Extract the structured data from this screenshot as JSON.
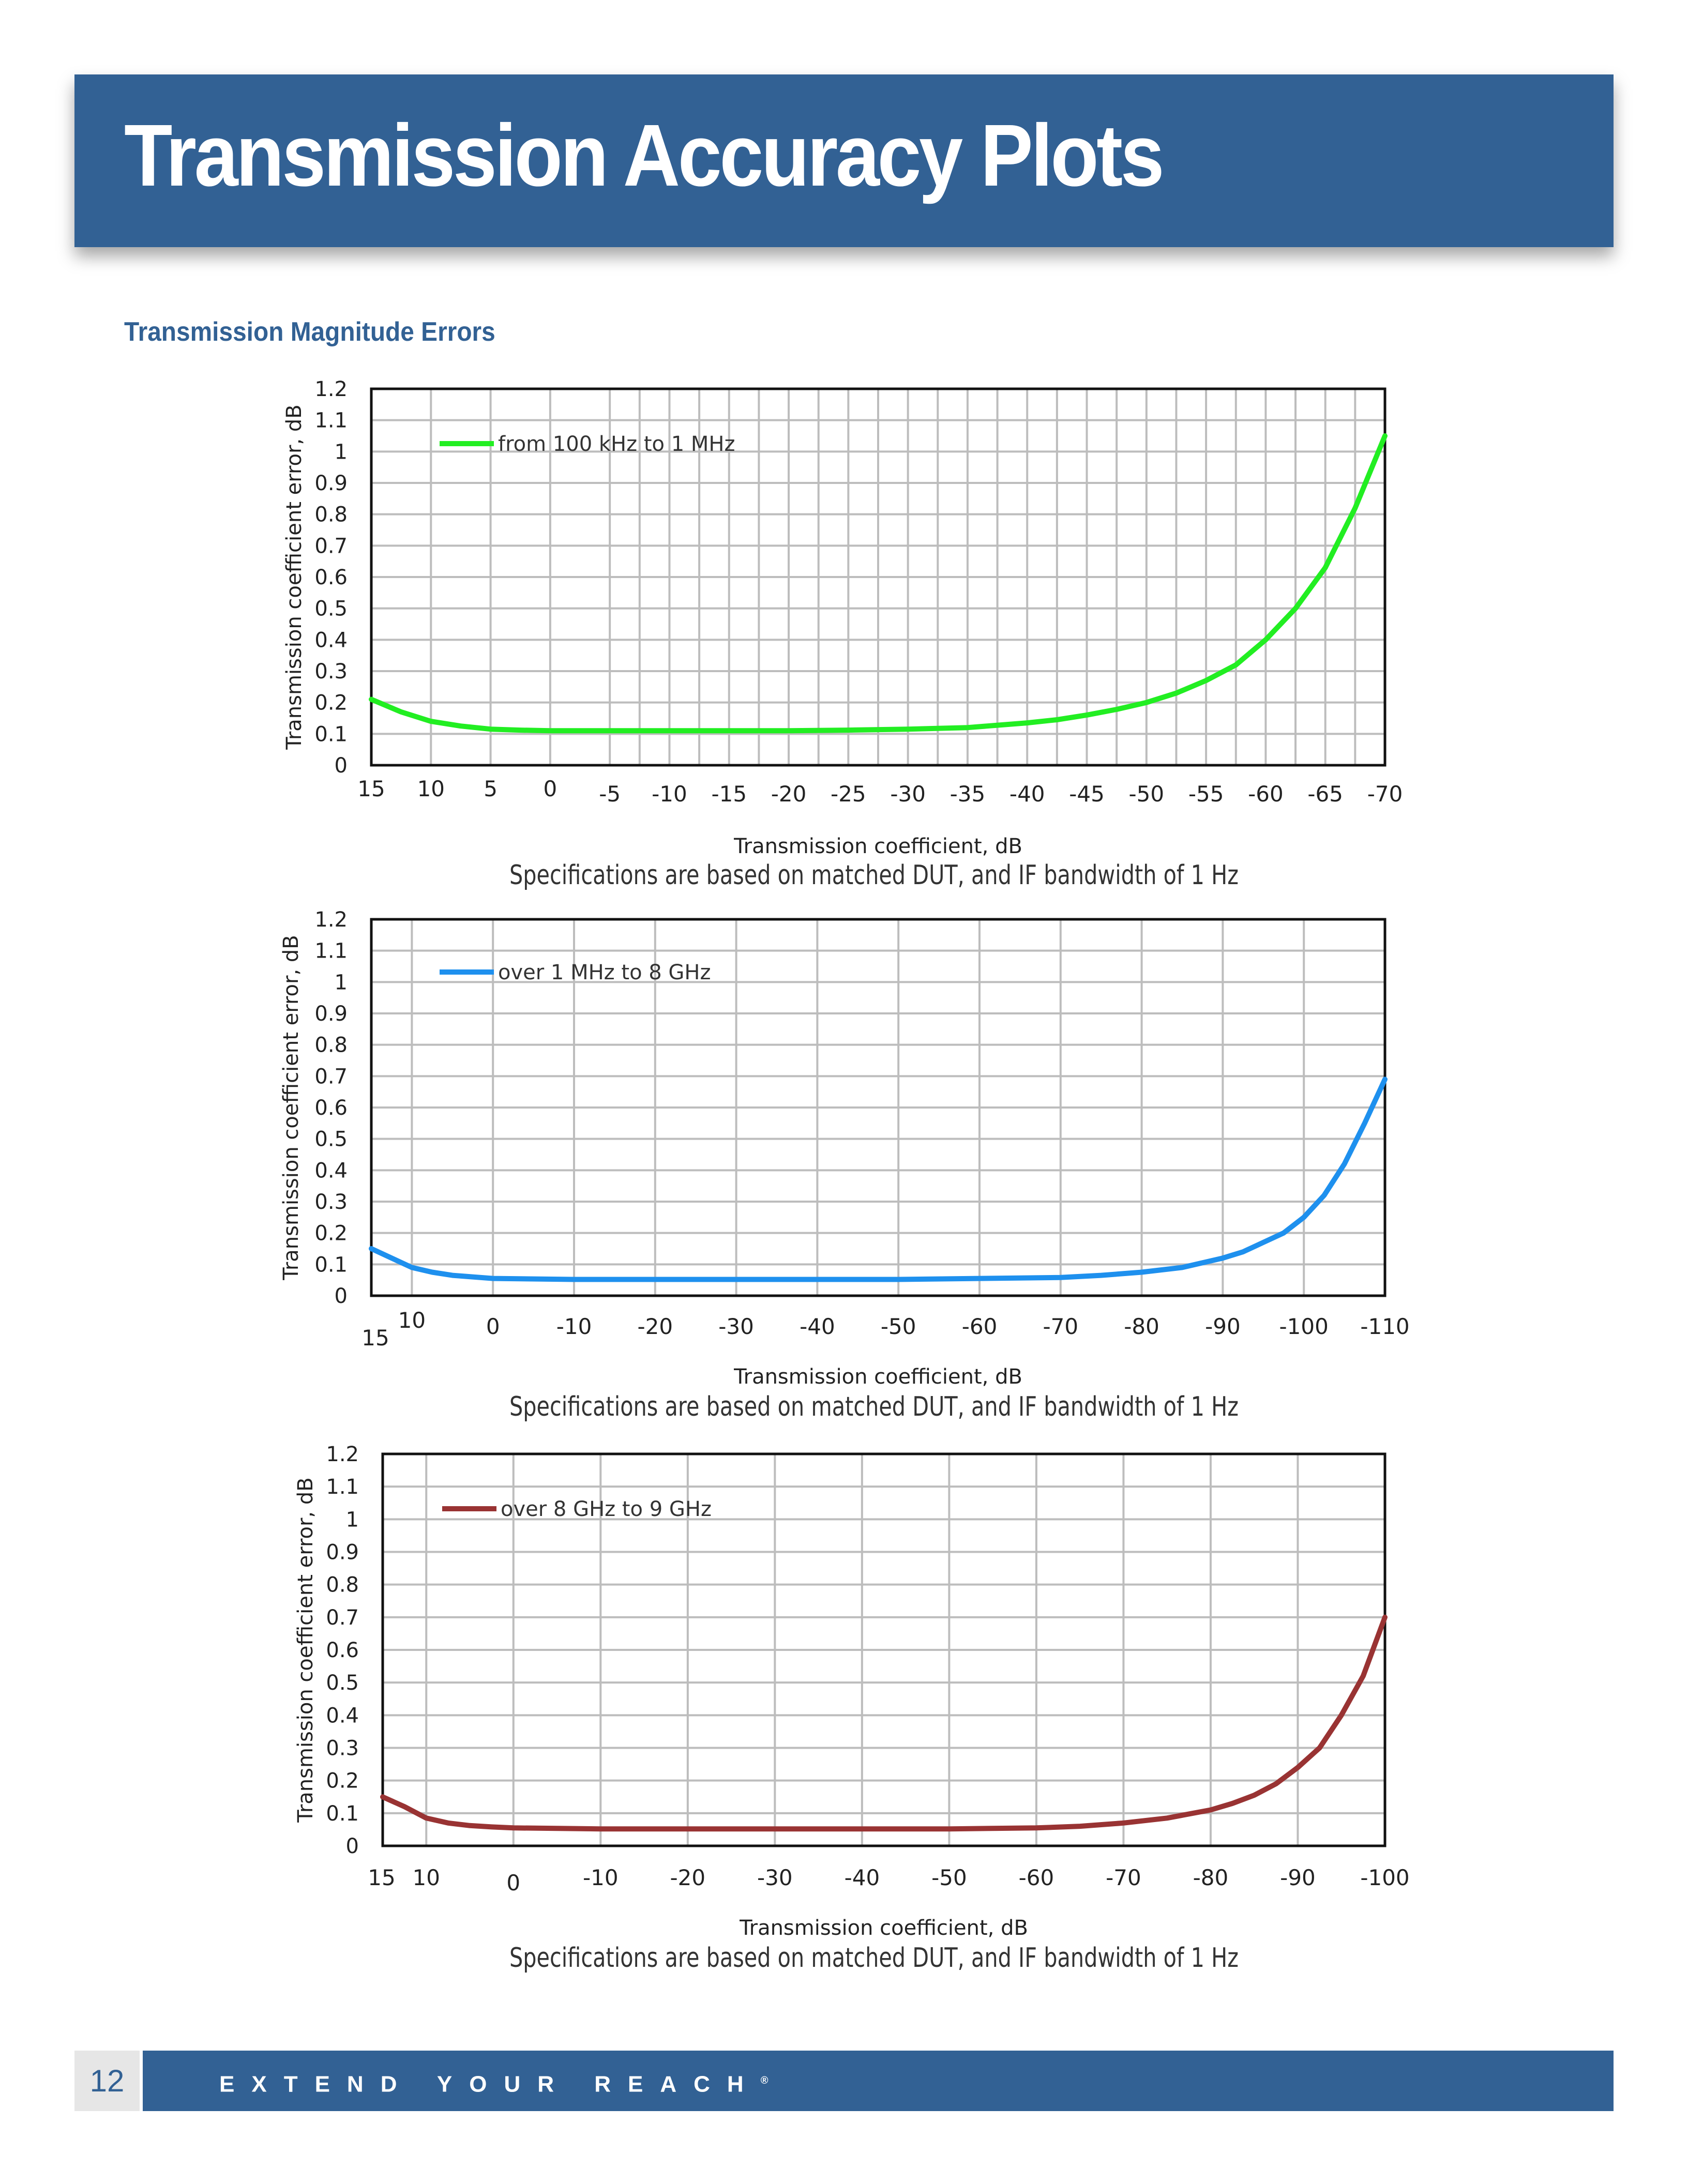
{
  "header": {
    "title": "Transmission Accuracy Plots"
  },
  "section": {
    "title": "Transmission Magnitude Errors"
  },
  "footer": {
    "page_number": "12",
    "tagline": "EXTEND YOUR REACH",
    "tagline_mark": "®"
  },
  "colors": {
    "brand_blue": "#326194",
    "green": "#22ee22",
    "blue": "#1e90ee",
    "red": "#993333"
  },
  "chart_data": [
    {
      "type": "line",
      "title": "",
      "xlabel": "Transmission coefficient, dB",
      "ylabel": "Transmission coefficient error, dB",
      "note": "Specifications are based on matched DUT, and IF bandwidth of 1 Hz",
      "xlim": [
        15,
        -70
      ],
      "ylim": [
        0,
        1.2
      ],
      "x_ticks": [
        15,
        10,
        5,
        0,
        -5,
        -10,
        -15,
        -20,
        -25,
        -30,
        -35,
        -40,
        -45,
        -50,
        -55,
        -60,
        -65,
        -70
      ],
      "x_tick_labels": [
        "15",
        "10",
        "5",
        "0",
        "-5",
        "-10",
        "-15",
        "-20",
        "-25",
        "-30",
        "-35",
        "-40",
        "-45",
        "-50",
        "-55",
        "-60",
        "-65",
        "-70"
      ],
      "y_ticks": [
        0,
        0.1,
        0.2,
        0.3,
        0.4,
        0.5,
        0.6,
        0.7,
        0.8,
        0.9,
        1,
        1.1,
        1.2
      ],
      "y_tick_labels": [
        "0",
        "0.1",
        "0.2",
        "0.3",
        "0.4",
        "0.5",
        "0.6",
        "0.7",
        "0.8",
        "0.9",
        "1",
        "1.1",
        "1.2"
      ],
      "grid": true,
      "legend_position": "top-left",
      "series": [
        {
          "name": "from 100 kHz to 1 MHz",
          "color": "#22ee22",
          "x": [
            15,
            12.5,
            10,
            7.5,
            5,
            2.5,
            0,
            -5,
            -10,
            -15,
            -20,
            -25,
            -30,
            -35,
            -40,
            -42.5,
            -45,
            -47.5,
            -50,
            -52.5,
            -55,
            -57.5,
            -60,
            -62.5,
            -65,
            -67.5,
            -70
          ],
          "y": [
            0.21,
            0.17,
            0.14,
            0.125,
            0.115,
            0.112,
            0.11,
            0.11,
            0.11,
            0.11,
            0.11,
            0.112,
            0.115,
            0.12,
            0.135,
            0.145,
            0.16,
            0.178,
            0.2,
            0.23,
            0.27,
            0.32,
            0.4,
            0.5,
            0.63,
            0.82,
            1.05
          ]
        }
      ]
    },
    {
      "type": "line",
      "title": "",
      "xlabel": "Transmission coefficient, dB",
      "ylabel": "Transmission coefficient error, dB",
      "note": "Specifications are based on matched DUT, and IF bandwidth of 1 Hz",
      "xlim": [
        15,
        -110
      ],
      "ylim": [
        0,
        1.2
      ],
      "x_ticks": [
        15,
        10,
        0,
        -10,
        -20,
        -30,
        -40,
        -50,
        -60,
        -70,
        -80,
        -90,
        -100,
        -110
      ],
      "x_tick_labels": [
        "15",
        "10",
        "0",
        "-10",
        "-20",
        "-30",
        "-40",
        "-50",
        "-60",
        "-70",
        "-80",
        "-90",
        "-100",
        "-110"
      ],
      "y_ticks": [
        0,
        0.1,
        0.2,
        0.3,
        0.4,
        0.5,
        0.6,
        0.7,
        0.8,
        0.9,
        1,
        1.1,
        1.2
      ],
      "y_tick_labels": [
        "0",
        "0.1",
        "0.2",
        "0.3",
        "0.4",
        "0.5",
        "0.6",
        "0.7",
        "0.8",
        "0.9",
        "1",
        "1.1",
        "1.2"
      ],
      "grid": true,
      "legend_position": "top-left",
      "series": [
        {
          "name": "over 1 MHz to 8 GHz",
          "color": "#1e90ee",
          "x": [
            15,
            12.5,
            10,
            7.5,
            5,
            2.5,
            0,
            -10,
            -20,
            -30,
            -40,
            -50,
            -60,
            -70,
            -75,
            -80,
            -85,
            -90,
            -92.5,
            -95,
            -97.5,
            -100,
            -102.5,
            -105,
            -107.5,
            -110
          ],
          "y": [
            0.15,
            0.12,
            0.09,
            0.075,
            0.065,
            0.06,
            0.055,
            0.052,
            0.052,
            0.052,
            0.052,
            0.052,
            0.055,
            0.058,
            0.065,
            0.075,
            0.09,
            0.12,
            0.14,
            0.17,
            0.2,
            0.25,
            0.32,
            0.42,
            0.55,
            0.69
          ]
        }
      ]
    },
    {
      "type": "line",
      "title": "",
      "xlabel": "Transmission coefficient, dB",
      "ylabel": "Transmission coefficient error, dB",
      "note": "Specifications are based on matched DUT, and IF bandwidth of 1 Hz",
      "xlim": [
        15,
        -100
      ],
      "ylim": [
        0,
        1.2
      ],
      "x_ticks": [
        15,
        10,
        0,
        -10,
        -20,
        -30,
        -40,
        -50,
        -60,
        -70,
        -80,
        -90,
        -100
      ],
      "x_tick_labels": [
        "15",
        "10",
        "0",
        "-10",
        "-20",
        "-30",
        "-40",
        "-50",
        "-60",
        "-70",
        "-80",
        "-90",
        "-100"
      ],
      "y_ticks": [
        0,
        0.1,
        0.2,
        0.3,
        0.4,
        0.5,
        0.6,
        0.7,
        0.8,
        0.9,
        1,
        1.1,
        1.2
      ],
      "y_tick_labels": [
        "0",
        "0.1",
        "0.2",
        "0.3",
        "0.4",
        "0.5",
        "0.6",
        "0.7",
        "0.8",
        "0.9",
        "1",
        "1.1",
        "1.2"
      ],
      "grid": true,
      "legend_position": "top-left",
      "series": [
        {
          "name": "over 8 GHz to 9 GHz",
          "color": "#993333",
          "x": [
            15,
            12.5,
            10,
            7.5,
            5,
            2.5,
            0,
            -10,
            -20,
            -30,
            -40,
            -50,
            -60,
            -65,
            -70,
            -75,
            -80,
            -82.5,
            -85,
            -87.5,
            -90,
            -92.5,
            -95,
            -97.5,
            -100
          ],
          "y": [
            0.15,
            0.12,
            0.085,
            0.07,
            0.062,
            0.058,
            0.055,
            0.052,
            0.052,
            0.052,
            0.052,
            0.052,
            0.055,
            0.06,
            0.07,
            0.085,
            0.11,
            0.13,
            0.155,
            0.19,
            0.24,
            0.3,
            0.4,
            0.52,
            0.7
          ]
        }
      ]
    }
  ]
}
